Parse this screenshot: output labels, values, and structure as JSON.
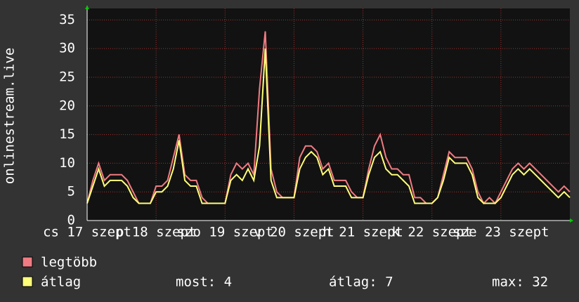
{
  "chart_data": {
    "type": "line",
    "y_label": "onlinestream.live",
    "x": [
      0,
      2,
      4,
      6,
      8,
      10,
      12,
      14,
      16,
      18,
      20,
      22,
      24,
      26,
      28,
      30,
      32,
      34,
      36,
      38,
      40,
      42,
      44,
      46,
      48,
      50,
      52,
      54,
      56,
      58,
      60,
      62,
      64,
      66,
      68,
      70,
      72,
      74,
      76,
      78,
      80,
      82,
      84,
      86,
      88,
      90,
      92,
      94,
      96,
      98,
      100,
      102,
      104,
      106,
      108,
      110,
      112,
      114,
      116,
      118,
      120,
      122,
      124,
      126,
      128,
      130,
      132,
      134,
      136,
      138,
      140,
      142,
      144,
      146,
      148,
      150,
      152,
      154,
      156,
      158,
      160,
      162,
      164,
      166,
      168
    ],
    "xlim": [
      0,
      168
    ],
    "xticks": [
      {
        "value": 0,
        "label": "cs 17 szept"
      },
      {
        "value": 24,
        "label": "p 18 szept"
      },
      {
        "value": 48,
        "label": "szo 19 szept"
      },
      {
        "value": 72,
        "label": "v 20 szept"
      },
      {
        "value": 96,
        "label": "h 21 szept"
      },
      {
        "value": 120,
        "label": "k 22 szept"
      },
      {
        "value": 144,
        "label": "sze 23 szept"
      }
    ],
    "ylim": [
      0,
      37
    ],
    "yticks": [
      0,
      5,
      10,
      15,
      20,
      25,
      30,
      35
    ],
    "grid": true,
    "series": [
      {
        "name": "legtöbb",
        "color": "#f07b82",
        "values": [
          3,
          7,
          10,
          7,
          8,
          8,
          8,
          7,
          5,
          3,
          3,
          3,
          6,
          6,
          7,
          11,
          15,
          8,
          7,
          7,
          4,
          3,
          3,
          3,
          3,
          8,
          10,
          9,
          10,
          8,
          23,
          33,
          9,
          5,
          4,
          4,
          4,
          11,
          13,
          13,
          12,
          9,
          10,
          7,
          7,
          7,
          5,
          4,
          4,
          9,
          13,
          15,
          11,
          9,
          9,
          8,
          8,
          4,
          4,
          3,
          3,
          4,
          8,
          12,
          11,
          11,
          11,
          9,
          5,
          3,
          4,
          3,
          5,
          7,
          9,
          10,
          9,
          10,
          9,
          8,
          7,
          6,
          5,
          6,
          5
        ]
      },
      {
        "name": "átlag",
        "color": "#ffff78",
        "values": [
          3,
          6,
          9,
          6,
          7,
          7,
          7,
          6,
          4,
          3,
          3,
          3,
          5,
          5,
          6,
          9,
          14,
          7,
          6,
          6,
          3,
          3,
          3,
          3,
          3,
          7,
          8,
          7,
          9,
          7,
          13,
          30,
          7,
          4,
          4,
          4,
          4,
          9,
          11,
          12,
          11,
          8,
          9,
          6,
          6,
          6,
          4,
          4,
          4,
          8,
          11,
          12,
          9,
          8,
          8,
          7,
          6,
          3,
          3,
          3,
          3,
          4,
          7,
          11,
          10,
          10,
          10,
          8,
          4,
          3,
          3,
          3,
          4,
          6,
          8,
          9,
          8,
          9,
          8,
          7,
          6,
          5,
          4,
          5,
          4
        ]
      }
    ],
    "stats": [
      "most: 4",
      "átlag: 7",
      "max: 32"
    ]
  }
}
